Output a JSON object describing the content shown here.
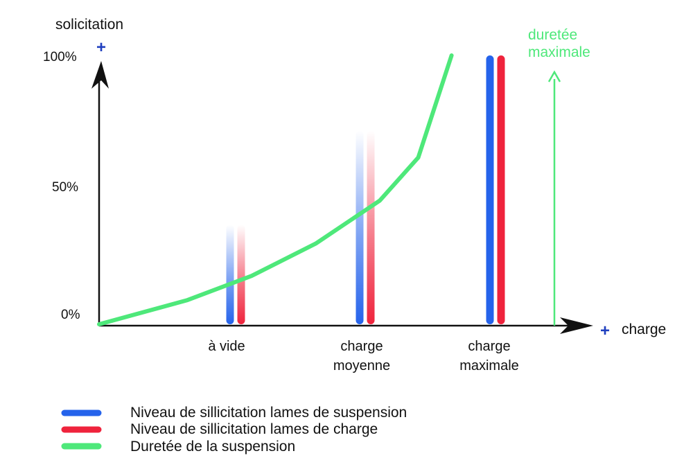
{
  "chart_data": {
    "type": "line",
    "y_axis": {
      "label": "solicitation",
      "ticks": [
        "0%",
        "50%",
        "100%"
      ],
      "range": [
        0,
        100
      ],
      "plus_marker": "+"
    },
    "x_axis": {
      "label": "charge",
      "plus_marker": "+",
      "categories": [
        {
          "line1": "à vide",
          "line2": ""
        },
        {
          "line1": "charge",
          "line2": "moyenne"
        },
        {
          "line1": "charge",
          "line2": "maximale"
        }
      ]
    },
    "bar_series": [
      {
        "name": "Niveau de sillicitation lames de suspension",
        "color": "#2563eb",
        "values": [
          37,
          72,
          100
        ]
      },
      {
        "name": "Niveau de sillicitation lames de charge",
        "color": "#ef233c",
        "values": [
          37,
          72,
          100
        ]
      }
    ],
    "bar_fade": [
      true,
      true,
      false
    ],
    "line_series": {
      "name": "Duretée de la suspension",
      "color": "#4ee87a",
      "x": [
        0,
        0.5,
        1,
        1.5,
        2,
        2.3,
        2.56
      ],
      "y": [
        0,
        9,
        18,
        30,
        46,
        62,
        100
      ]
    },
    "annotation": {
      "line1": "duretée",
      "line2": "maximale",
      "color": "#4ee87a"
    },
    "axis_color": "#111111",
    "plus_color": "#1f3fbf",
    "legend": {
      "placement": "bottom-left",
      "items": [
        {
          "label": "Niveau de sillicitation lames de suspension",
          "color": "#2563eb"
        },
        {
          "label": "Niveau de sillicitation lames de charge",
          "color": "#ef233c"
        },
        {
          "label": "Duretée de la suspension",
          "color": "#4ee87a"
        }
      ]
    }
  }
}
